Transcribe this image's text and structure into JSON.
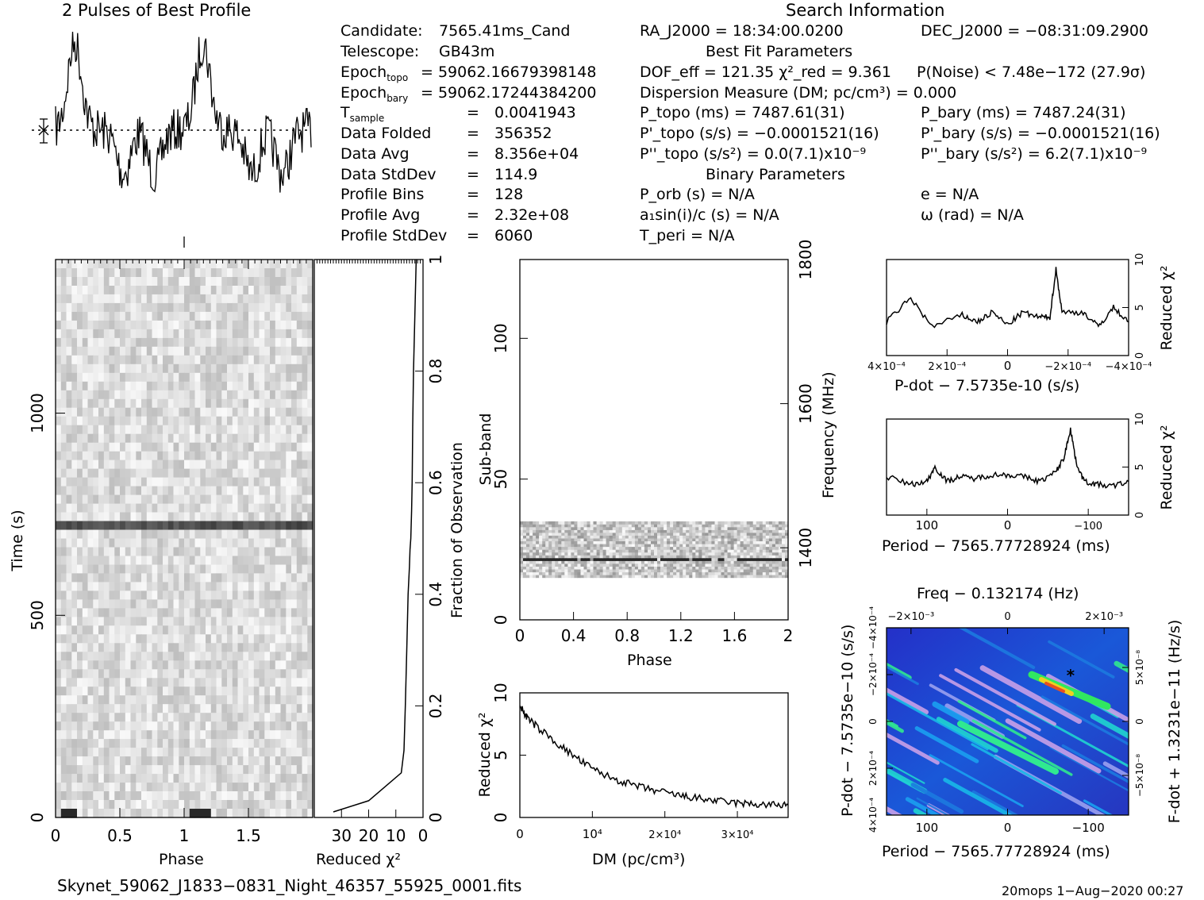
{
  "header": {
    "profile_title": "2 Pulses of Best Profile",
    "search_title": "Search Information",
    "best_fit_title": "Best Fit Parameters",
    "binary_title": "Binary Parameters"
  },
  "candidate_info": [
    {
      "label": "Candidate:",
      "value": "7565.41ms_Cand"
    },
    {
      "label": "Telescope:",
      "value": "GB43m"
    },
    {
      "label": "Epoch_topo",
      "value": "= 59062.16679398148"
    },
    {
      "label": "Epoch_bary",
      "value": "= 59062.17244384200"
    },
    {
      "label": "T_sample",
      "value": "0.0041943"
    },
    {
      "label": "Data Folded",
      "value": "356352"
    },
    {
      "label": "Data Avg",
      "value": "8.356e+04"
    },
    {
      "label": "Data StdDev",
      "value": "114.9"
    },
    {
      "label": "Profile Bins",
      "value": "128"
    },
    {
      "label": "Profile Avg",
      "value": "2.32e+08"
    },
    {
      "label": "Profile StdDev",
      "value": "6060"
    }
  ],
  "search_info": {
    "ra": "RA_J2000 = 18:34:00.0200",
    "dec": "DEC_J2000 = −08:31:09.2900",
    "dof_chi": "DOF_eff = 121.35   χ²_red = 9.361",
    "p_noise": "P(Noise) < 7.48e−172   (27.9σ)",
    "dm_line": "Dispersion Measure (DM; pc/cm³) = 0.000",
    "p_topo": "P_topo (ms) =  7487.61(31)",
    "p_bary": "P_bary (ms) =  7487.24(31)",
    "pd_topo": "P'_topo (s/s) = −0.0001521(16)",
    "pd_bary": "P'_bary (s/s) = −0.0001521(16)",
    "pdd_topo": "P''_topo (s/s²) = 0.0(7.1)x10⁻⁹",
    "pdd_bary": "P''_bary (s/s²) =  6.2(7.1)x10⁻⁹",
    "p_orb": "P_orb (s) = N/A",
    "a1sini": "a₁sin(i)/c (s) = N/A",
    "t_peri": "T_peri = N/A",
    "ecc": "e = N/A",
    "omega": "ω (rad) = N/A"
  },
  "footer": {
    "filename": "Skynet_59062_J1833−0831_Night_46357_55925_0001.fits",
    "stamp": "20mops   1−Aug−2020 00:27"
  },
  "colors": {
    "accent": "#000000",
    "star": "#000000"
  },
  "chart_data": [
    {
      "id": "profile",
      "type": "line",
      "title": "2 Pulses of Best Profile",
      "x_range": [
        0,
        2
      ],
      "bins": 256,
      "peaks_phase": [
        0.15,
        1.15
      ]
    },
    {
      "id": "time_phase",
      "type": "heatmap",
      "xlabel": "Phase",
      "ylabel": "Time (s)",
      "xlim": [
        0,
        2
      ],
      "ylim": [
        0,
        1380
      ],
      "x_ticks": [
        "0",
        "0.5",
        "1",
        "1.5"
      ],
      "y_ticks": [
        "0",
        "500",
        "1000"
      ],
      "y_tick_values": [
        0,
        500,
        1000
      ],
      "dark_band_time_s": 720
    },
    {
      "id": "chi_vs_fraction",
      "type": "line",
      "xlabel": "Reduced χ²",
      "ylabel": "Fraction of Observation",
      "xlim": [
        40,
        0
      ],
      "ylim": [
        0,
        1
      ],
      "x_ticks": [
        "30",
        "20",
        "10",
        "0"
      ],
      "x_tick_values": [
        30,
        20,
        10,
        0
      ],
      "y_ticks": [
        "0",
        "0.2",
        "0.4",
        "0.6",
        "0.8",
        "1"
      ],
      "y_tick_values": [
        0,
        0.2,
        0.4,
        0.6,
        0.8,
        1
      ],
      "x": [
        33,
        20,
        8,
        7,
        6.5,
        6,
        5.5,
        5,
        4.8,
        4.5,
        4.2,
        4,
        3.8,
        3.5,
        3,
        2.5
      ],
      "y": [
        0.01,
        0.03,
        0.08,
        0.12,
        0.2,
        0.3,
        0.4,
        0.45,
        0.48,
        0.5,
        0.55,
        0.6,
        0.7,
        0.8,
        0.9,
        1.0
      ]
    },
    {
      "id": "subband_phase",
      "type": "heatmap",
      "xlabel": "Phase",
      "ylabel": "Sub-band",
      "y2label": "Frequency (MHz)",
      "xlim": [
        0,
        2
      ],
      "ylim": [
        0,
        128
      ],
      "x_ticks": [
        "0",
        "0.4",
        "0.8",
        "1.2",
        "1.6",
        "2"
      ],
      "x_tick_values": [
        0,
        0.4,
        0.8,
        1.2,
        1.6,
        2
      ],
      "y_ticks": [
        "0",
        "50",
        "100"
      ],
      "y_tick_values": [
        0,
        50,
        100
      ],
      "y2_ticks": [
        "1400",
        "1600",
        "1800"
      ],
      "y2_tick_values": [
        1400,
        1600,
        1800
      ],
      "y2lim": [
        1300,
        1800
      ],
      "active_subbands": [
        15,
        35
      ],
      "bright_subband": 21
    },
    {
      "id": "dm_chi",
      "type": "line",
      "xlabel": "DM (pc/cm³)",
      "ylabel": "Reduced χ²",
      "xlim": [
        0,
        37000
      ],
      "ylim": [
        0,
        10
      ],
      "x_ticks": [
        "0",
        "10⁴",
        "2×10⁴",
        "3×10⁴"
      ],
      "x_tick_values": [
        0,
        10000,
        20000,
        30000
      ],
      "y_ticks": [
        "0",
        "5",
        "10"
      ],
      "y_tick_values": [
        0,
        5,
        10
      ],
      "x": [
        0,
        1000,
        2500,
        5000,
        7500,
        10000,
        12500,
        15000,
        17500,
        20000,
        22500,
        25000,
        27500,
        30000,
        32500,
        35000,
        37000
      ],
      "y": [
        9.0,
        8.0,
        7.2,
        6.0,
        4.9,
        3.9,
        3.2,
        2.7,
        2.3,
        2.0,
        1.7,
        1.5,
        1.3,
        1.15,
        1.05,
        1.0,
        1.0
      ]
    },
    {
      "id": "pdot_chi",
      "type": "line",
      "xlabel": "P-dot − 7.5735e-10 (s/s)",
      "ylabel": "Reduced χ²",
      "xlim": [
        0.0004,
        -0.0004
      ],
      "ylim": [
        0,
        10
      ],
      "x_ticks": [
        "4×10⁻⁴",
        "2×10⁻⁴",
        "0",
        "−2×10⁻⁴",
        "−4×10⁻⁴"
      ],
      "x_tick_values": [
        0.0004,
        0.0002,
        0,
        -0.0002,
        -0.0004
      ],
      "y_ticks": [
        "0",
        "5",
        "10"
      ],
      "y_tick_values": [
        0,
        5,
        10
      ],
      "x": [
        0.0004,
        0.00032,
        0.00025,
        0.00015,
        0.0001,
        5e-05,
        0,
        -5e-05,
        -0.0001,
        -0.00014,
        -0.00016,
        -0.00018,
        -0.00025,
        -0.0003,
        -0.00035,
        -0.0004
      ],
      "y": [
        3.5,
        6.0,
        3.0,
        4.2,
        3.5,
        4.5,
        3.2,
        4.5,
        4.0,
        4.0,
        9.0,
        4.5,
        4.5,
        3.0,
        5.0,
        3.5
      ]
    },
    {
      "id": "period_chi",
      "type": "line",
      "xlabel": "Period − 7565.77728924 (ms)",
      "ylabel": "Reduced χ²",
      "xlim": [
        150,
        -150
      ],
      "ylim": [
        0,
        10
      ],
      "x_ticks": [
        "100",
        "0",
        "−100"
      ],
      "x_tick_values": [
        100,
        0,
        -100
      ],
      "y_ticks": [
        "0",
        "5",
        "10"
      ],
      "y_tick_values": [
        0,
        5,
        10
      ],
      "x": [
        150,
        120,
        100,
        90,
        75,
        60,
        40,
        20,
        0,
        -20,
        -40,
        -60,
        -70,
        -78,
        -85,
        -95,
        -110,
        -130,
        -150
      ],
      "y": [
        4.0,
        3.2,
        3.5,
        5.0,
        3.5,
        4.0,
        3.8,
        4.2,
        4.2,
        4.0,
        3.5,
        4.5,
        6.0,
        9.0,
        5.5,
        3.5,
        3.2,
        3.0,
        3.5
      ]
    },
    {
      "id": "ppdot_map",
      "type": "heatmap",
      "title": "Freq − 0.132174 (Hz)",
      "xlabel": "Period − 7565.77728924 (ms)",
      "ylabel": "P-dot − 7.5735e−10 (s/s)",
      "y2label": "F-dot + 1.3231e−11 (Hz/s)",
      "xlim": [
        150,
        -150
      ],
      "ylim": [
        0.0004,
        -0.0004
      ],
      "x_ticks": [
        "100",
        "0",
        "−100"
      ],
      "x_tick_values": [
        100,
        0,
        -100
      ],
      "top_ticks": [
        "−2×10⁻³",
        "0",
        "2×10⁻³"
      ],
      "y_ticks": [
        "4×10⁻⁴",
        "2×10⁻⁴",
        "0",
        "−2×10⁻⁴",
        "−4×10⁻⁴"
      ],
      "y2_ticks": [
        "5×10⁻⁸",
        "0",
        "−5×10⁻⁸"
      ],
      "best_period_offset_ms": -78,
      "best_pdot_offset": -0.0002
    }
  ]
}
